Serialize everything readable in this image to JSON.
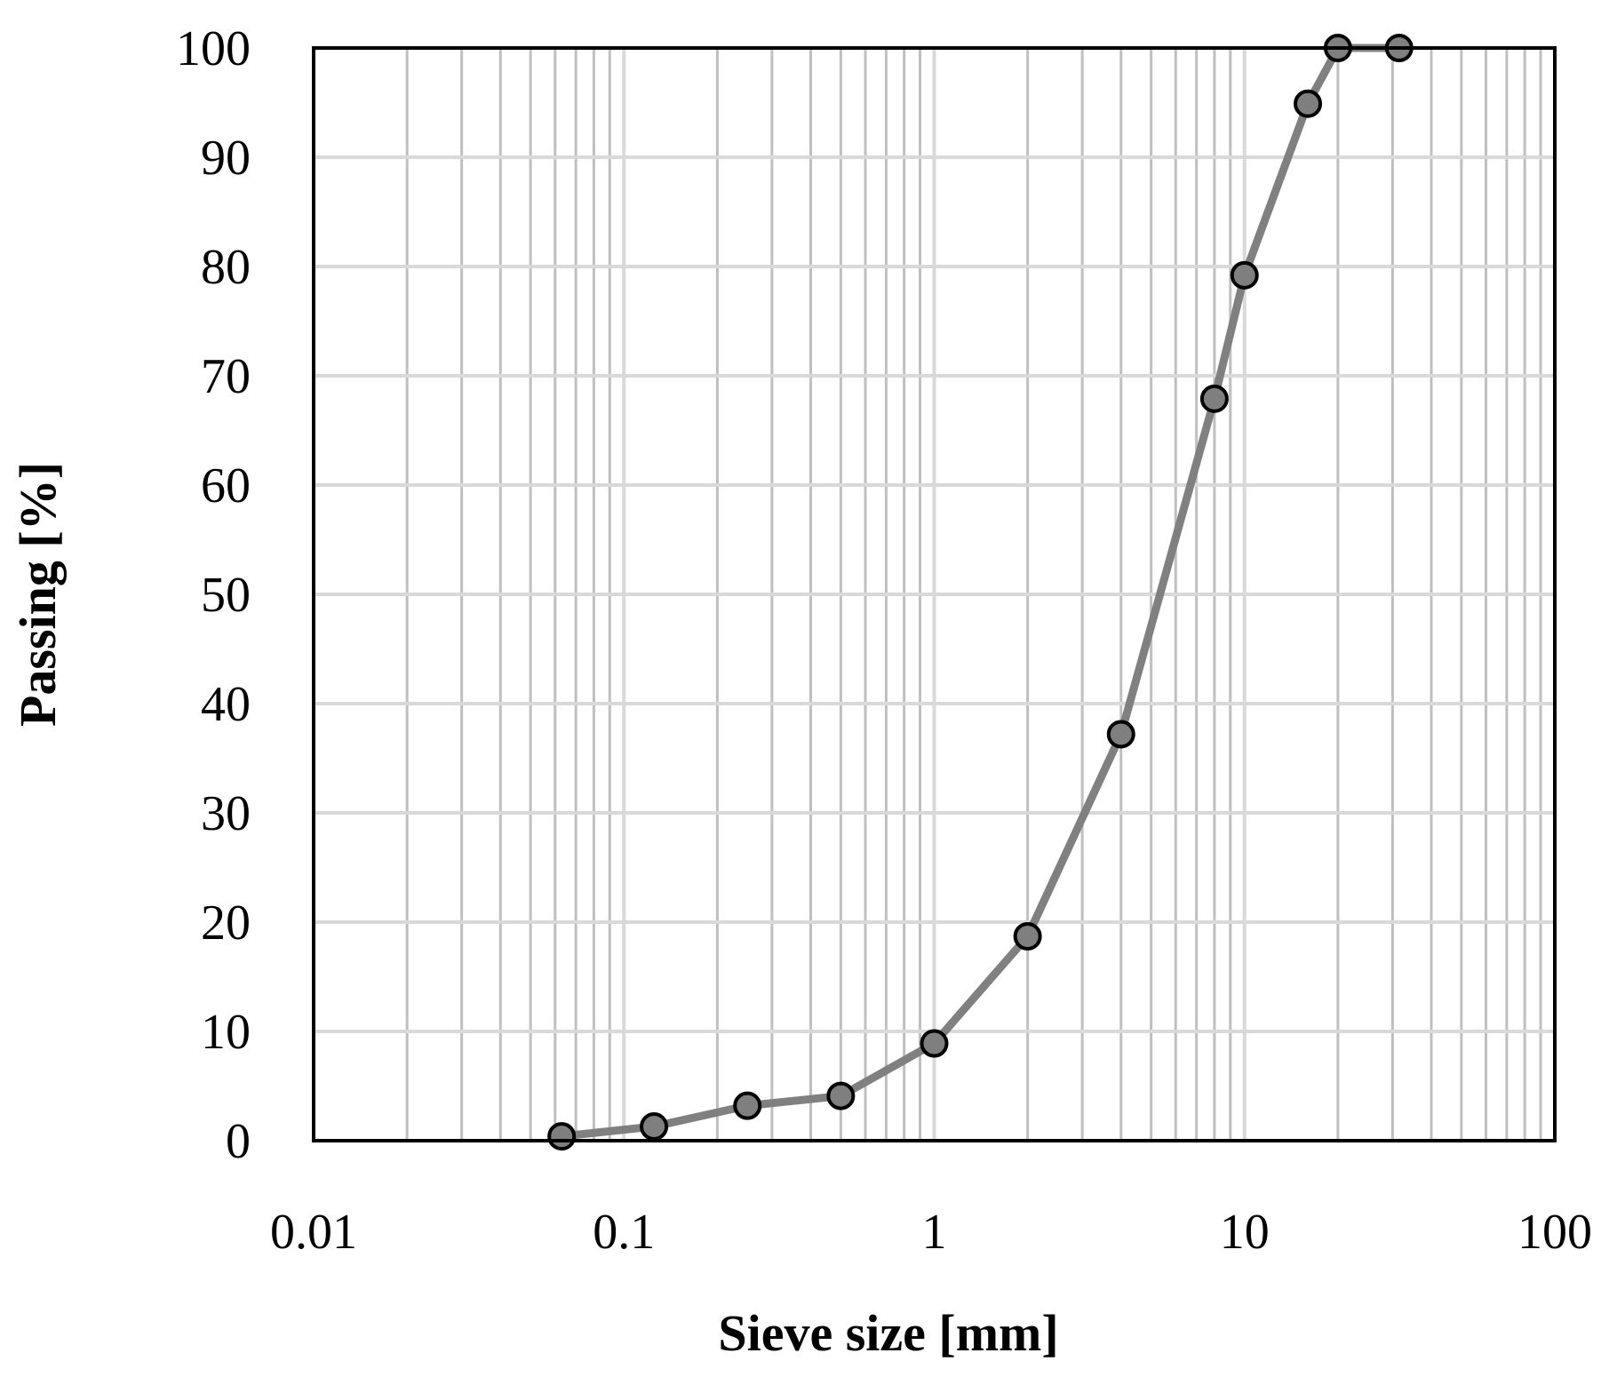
{
  "chart_data": {
    "type": "line",
    "title": "",
    "xlabel": "Sieve size [mm]",
    "ylabel": "Passing [%]",
    "x_scale": "log",
    "xlim": [
      0.01,
      100
    ],
    "ylim": [
      0,
      100
    ],
    "x_ticks": [
      0.01,
      0.1,
      1,
      10,
      100
    ],
    "x_tick_labels": [
      "0.01",
      "0.1",
      "1",
      "10",
      "100"
    ],
    "y_ticks": [
      0,
      10,
      20,
      30,
      40,
      50,
      60,
      70,
      80,
      90,
      100
    ],
    "y_tick_labels": [
      "0",
      "10",
      "20",
      "30",
      "40",
      "50",
      "60",
      "70",
      "80",
      "90",
      "100"
    ],
    "grid": true,
    "legend": "none",
    "series": [
      {
        "x": [
          0.063,
          0.125,
          0.25,
          0.5,
          1,
          2,
          4,
          8,
          10,
          16,
          20,
          31.5
        ],
        "y": [
          0.4,
          1.3,
          3.2,
          4.1,
          8.9,
          18.7,
          37.2,
          67.9,
          79.2,
          94.9,
          100,
          100
        ]
      }
    ],
    "colors": {
      "line": "#808080",
      "marker_fill": "#7f7f7f",
      "marker_edge": "#000000",
      "grid_major": "#bfbfbf",
      "grid_minor": "#d9d9d9",
      "frame": "#000000"
    }
  }
}
